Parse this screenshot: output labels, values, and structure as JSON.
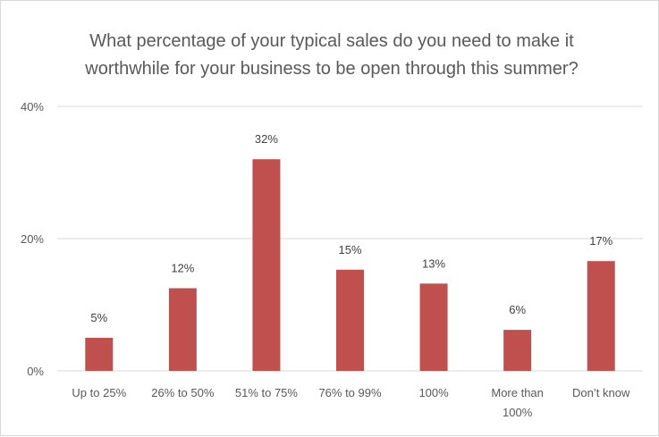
{
  "chart_data": {
    "type": "bar",
    "title_lines": [
      "What percentage of your typical sales do you need to make it",
      "worthwhile for your business to be open through this summer?"
    ],
    "categories": [
      [
        "Up to 25%"
      ],
      [
        "26% to 50%"
      ],
      [
        "51% to 75%"
      ],
      [
        "76% to 99%"
      ],
      [
        "100%"
      ],
      [
        "More than",
        "100%"
      ],
      [
        "Don’t know"
      ]
    ],
    "values": [
      5,
      12.5,
      32,
      15.3,
      13.2,
      6.2,
      16.6
    ],
    "data_labels": [
      "5%",
      "12%",
      "32%",
      "15%",
      "13%",
      "6%",
      "17%"
    ],
    "yticks": [
      0,
      20,
      40
    ],
    "ytick_labels": [
      "0%",
      "20%",
      "40%"
    ],
    "ylim": [
      0,
      40
    ],
    "grid": true,
    "legend": "none",
    "bar_color": "#c0504d",
    "grid_color": "#d9d9d9"
  }
}
